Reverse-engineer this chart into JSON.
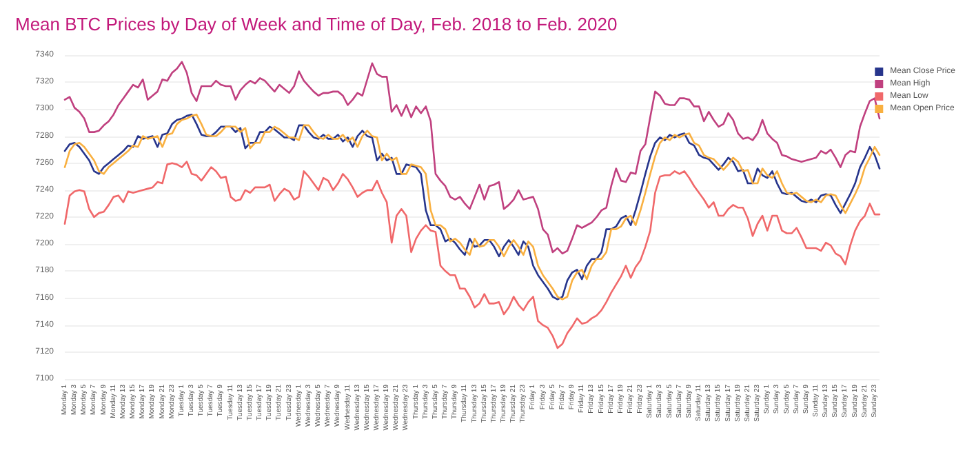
{
  "chart_data": {
    "type": "line",
    "title": "Mean BTC Prices by Day of Week and Time of Day, Feb. 2018 to Feb. 2020",
    "categories": [
      "Monday 1",
      null,
      "Monday 3",
      null,
      "Monday 5",
      null,
      "Monday 7",
      null,
      "Monday 9",
      null,
      "Monday 11",
      null,
      "Monday 13",
      null,
      "Monday 15",
      null,
      "Monday 17",
      null,
      "Monday 19",
      null,
      "Monday 21",
      null,
      "Monday 23",
      null,
      "Tuesday 1",
      null,
      "Tuesday 3",
      null,
      "Tuesday 5",
      null,
      "Tuesday 7",
      null,
      "Tuesday 9",
      null,
      "Tuesday 11",
      null,
      "Tuesday 13",
      null,
      "Tuesday 15",
      null,
      "Tuesday 17",
      null,
      "Tuesday 19",
      null,
      "Tuesday 21",
      null,
      "Tuesday 23",
      null,
      "Wednesday 1",
      null,
      "Wednesday 3",
      null,
      "Wednesday 5",
      null,
      "Wednesday 7",
      null,
      "Wednesday 9",
      null,
      "Wednesday 11",
      null,
      "Wednesday 13",
      null,
      "Wednesday 15",
      null,
      "Wednesday 17",
      null,
      "Wednesday 19",
      null,
      "Wednesday 21",
      null,
      "Wednesday 23",
      null,
      "Thursday 1",
      null,
      "Thursday 3",
      null,
      "Thursday 5",
      null,
      "Thursday 7",
      null,
      "Thursday 9",
      null,
      "Thursday 11",
      null,
      "Thursday 13",
      null,
      "Thursday 15",
      null,
      "Thursday 17",
      null,
      "Thursday 19",
      null,
      "Thursday 21",
      null,
      "Thursday 23",
      null,
      "Friday 1",
      null,
      "Friday 3",
      null,
      "Friday 5",
      null,
      "Friday 7",
      null,
      "Friday 9",
      null,
      "Friday 11",
      null,
      "Friday 13",
      null,
      "Friday 15",
      null,
      "Friday 17",
      null,
      "Friday 19",
      null,
      "Friday 21",
      null,
      "Friday 23",
      null,
      "Saturday 1",
      null,
      "Saturday 3",
      null,
      "Saturday 5",
      null,
      "Saturday 7",
      null,
      "Saturday 9",
      null,
      "Saturday 11",
      null,
      "Saturday 13",
      null,
      "Saturday 15",
      null,
      "Saturday 17",
      null,
      "Saturday 19",
      null,
      "Saturday 21",
      null,
      "Saturday 23",
      null,
      "Sunday 1",
      null,
      "Sunday 3",
      null,
      "Sunday 5",
      null,
      "Sunday 7",
      null,
      "Sunday 9",
      null,
      "Sunday 11",
      null,
      "Sunday 13",
      null,
      "Sunday 15",
      null,
      "Sunday 17",
      null,
      "Sunday 19",
      null,
      "Sunday 21",
      null,
      "Sunday 23",
      null
    ],
    "series": [
      {
        "name": "Mean Close Price",
        "color": "#27358c",
        "values": [
          7269,
          7274,
          7275,
          7272,
          7267,
          7262,
          7254,
          7252,
          7257,
          7260,
          7263,
          7266,
          7269,
          7273,
          7272,
          7280,
          7278,
          7279,
          7280,
          7272,
          7281,
          7282,
          7289,
          7292,
          7293,
          7295,
          7296,
          7289,
          7281,
          7280,
          7280,
          7283,
          7287,
          7287,
          7287,
          7283,
          7286,
          7271,
          7275,
          7275,
          7283,
          7283,
          7287,
          7285,
          7282,
          7279,
          7279,
          7277,
          7288,
          7288,
          7283,
          7279,
          7278,
          7281,
          7278,
          7278,
          7281,
          7276,
          7279,
          7272,
          7280,
          7284,
          7280,
          7279,
          7262,
          7267,
          7262,
          7264,
          7252,
          7252,
          7259,
          7258,
          7257,
          7252,
          7225,
          7214,
          7214,
          7211,
          7202,
          7204,
          7201,
          7196,
          7192,
          7204,
          7198,
          7199,
          7203,
          7203,
          7198,
          7191,
          7198,
          7203,
          7198,
          7192,
          7202,
          7198,
          7184,
          7177,
          7172,
          7167,
          7161,
          7159,
          7161,
          7173,
          7179,
          7181,
          7174,
          7184,
          7189,
          7189,
          7194,
          7211,
          7211,
          7213,
          7219,
          7221,
          7214,
          7225,
          7238,
          7252,
          7265,
          7275,
          7279,
          7277,
          7281,
          7279,
          7281,
          7282,
          7275,
          7273,
          7266,
          7264,
          7263,
          7259,
          7255,
          7259,
          7264,
          7261,
          7254,
          7255,
          7245,
          7245,
          7256,
          7251,
          7249,
          7254,
          7245,
          7238,
          7237,
          7238,
          7235,
          7232,
          7231,
          7233,
          7231,
          7236,
          7237,
          7236,
          7229,
          7223,
          7230,
          7237,
          7245,
          7257,
          7264,
          7272,
          7266,
          7256
        ]
      },
      {
        "name": "Mean High",
        "color": "#c0407f",
        "values": [
          7307,
          7309,
          7301,
          7298,
          7293,
          7283,
          7283,
          7284,
          7288,
          7291,
          7296,
          7303,
          7308,
          7313,
          7318,
          7316,
          7322,
          7307,
          7310,
          7313,
          7322,
          7321,
          7327,
          7330,
          7335,
          7327,
          7312,
          7306,
          7317,
          7317,
          7317,
          7321,
          7318,
          7317,
          7317,
          7307,
          7314,
          7318,
          7321,
          7319,
          7323,
          7321,
          7317,
          7313,
          7318,
          7315,
          7312,
          7317,
          7328,
          7321,
          7317,
          7313,
          7310,
          7312,
          7312,
          7313,
          7313,
          7310,
          7303,
          7307,
          7312,
          7310,
          7322,
          7334,
          7326,
          7324,
          7324,
          7298,
          7303,
          7295,
          7303,
          7294,
          7302,
          7297,
          7302,
          7291,
          7252,
          7247,
          7243,
          7235,
          7233,
          7235,
          7230,
          7226,
          7235,
          7244,
          7233,
          7243,
          7244,
          7246,
          7226,
          7229,
          7233,
          7240,
          7233,
          7234,
          7235,
          7226,
          7211,
          7207,
          7194,
          7197,
          7193,
          7195,
          7204,
          7214,
          7212,
          7214,
          7216,
          7220,
          7225,
          7227,
          7243,
          7256,
          7247,
          7246,
          7253,
          7252,
          7269,
          7274,
          7294,
          7313,
          7310,
          7304,
          7303,
          7303,
          7308,
          7308,
          7307,
          7302,
          7302,
          7291,
          7298,
          7292,
          7287,
          7289,
          7297,
          7292,
          7282,
          7278,
          7279,
          7277,
          7282,
          7292,
          7282,
          7278,
          7275,
          7266,
          7265,
          7263,
          7262,
          7261,
          7262,
          7263,
          7264,
          7269,
          7267,
          7270,
          7264,
          7257,
          7266,
          7269,
          7268,
          7287,
          7297,
          7306,
          7308,
          7293
        ]
      },
      {
        "name": "Mean Low",
        "color": "#f0686a",
        "values": [
          7215,
          7236,
          7239,
          7240,
          7239,
          7226,
          7220,
          7223,
          7224,
          7229,
          7235,
          7236,
          7231,
          7239,
          7238,
          7239,
          7240,
          7241,
          7242,
          7246,
          7245,
          7259,
          7260,
          7259,
          7257,
          7261,
          7252,
          7251,
          7247,
          7252,
          7257,
          7254,
          7249,
          7250,
          7235,
          7232,
          7233,
          7240,
          7238,
          7242,
          7242,
          7242,
          7244,
          7232,
          7237,
          7241,
          7239,
          7233,
          7235,
          7254,
          7250,
          7245,
          7240,
          7249,
          7247,
          7240,
          7245,
          7252,
          7248,
          7242,
          7235,
          7238,
          7240,
          7240,
          7247,
          7238,
          7231,
          7201,
          7221,
          7226,
          7221,
          7194,
          7204,
          7210,
          7214,
          7210,
          7209,
          7184,
          7180,
          7177,
          7177,
          7167,
          7167,
          7161,
          7153,
          7156,
          7163,
          7156,
          7156,
          7157,
          7148,
          7153,
          7161,
          7155,
          7151,
          7157,
          7161,
          7143,
          7140,
          7138,
          7132,
          7123,
          7126,
          7134,
          7139,
          7145,
          7141,
          7142,
          7145,
          7147,
          7151,
          7157,
          7164,
          7170,
          7176,
          7184,
          7175,
          7183,
          7188,
          7198,
          7210,
          7238,
          7250,
          7251,
          7251,
          7254,
          7252,
          7254,
          7249,
          7243,
          7238,
          7233,
          7227,
          7231,
          7221,
          7221,
          7226,
          7229,
          7227,
          7227,
          7219,
          7206,
          7215,
          7221,
          7210,
          7221,
          7221,
          7210,
          7208,
          7208,
          7212,
          7205,
          7197,
          7197,
          7197,
          7195,
          7201,
          7199,
          7193,
          7191,
          7185,
          7199,
          7210,
          7217,
          7221,
          7230,
          7222,
          7222
        ]
      },
      {
        "name": "Mean Open Price",
        "color": "#f9b040",
        "values": [
          7257,
          7269,
          7274,
          7275,
          7272,
          7267,
          7262,
          7254,
          7252,
          7257,
          7260,
          7263,
          7266,
          7269,
          7273,
          7272,
          7280,
          7278,
          7279,
          7280,
          7272,
          7281,
          7282,
          7289,
          7292,
          7293,
          7295,
          7296,
          7289,
          7281,
          7280,
          7280,
          7283,
          7287,
          7287,
          7287,
          7283,
          7286,
          7271,
          7275,
          7275,
          7283,
          7283,
          7287,
          7285,
          7282,
          7279,
          7279,
          7277,
          7288,
          7288,
          7283,
          7279,
          7278,
          7281,
          7278,
          7278,
          7281,
          7276,
          7279,
          7272,
          7280,
          7284,
          7280,
          7279,
          7262,
          7267,
          7262,
          7264,
          7252,
          7252,
          7259,
          7258,
          7257,
          7252,
          7225,
          7214,
          7214,
          7211,
          7202,
          7204,
          7201,
          7196,
          7192,
          7204,
          7198,
          7199,
          7203,
          7203,
          7198,
          7191,
          7198,
          7203,
          7198,
          7192,
          7202,
          7198,
          7184,
          7177,
          7172,
          7167,
          7161,
          7159,
          7161,
          7173,
          7179,
          7181,
          7174,
          7184,
          7189,
          7189,
          7194,
          7211,
          7211,
          7213,
          7219,
          7221,
          7214,
          7225,
          7238,
          7252,
          7265,
          7275,
          7279,
          7277,
          7281,
          7279,
          7281,
          7282,
          7275,
          7273,
          7266,
          7264,
          7263,
          7259,
          7255,
          7259,
          7264,
          7261,
          7254,
          7255,
          7245,
          7245,
          7256,
          7251,
          7249,
          7254,
          7245,
          7238,
          7237,
          7238,
          7235,
          7232,
          7231,
          7233,
          7231,
          7236,
          7237,
          7236,
          7229,
          7223,
          7230,
          7237,
          7245,
          7257,
          7264,
          7272,
          7266
        ]
      }
    ],
    "ylim": [
      7100,
      7340
    ],
    "yticks": [
      7100,
      7120,
      7140,
      7160,
      7180,
      7200,
      7220,
      7240,
      7260,
      7280,
      7300,
      7320,
      7340
    ],
    "grid": "y",
    "legend": "top right",
    "marker": "none",
    "line_style": "solid"
  }
}
